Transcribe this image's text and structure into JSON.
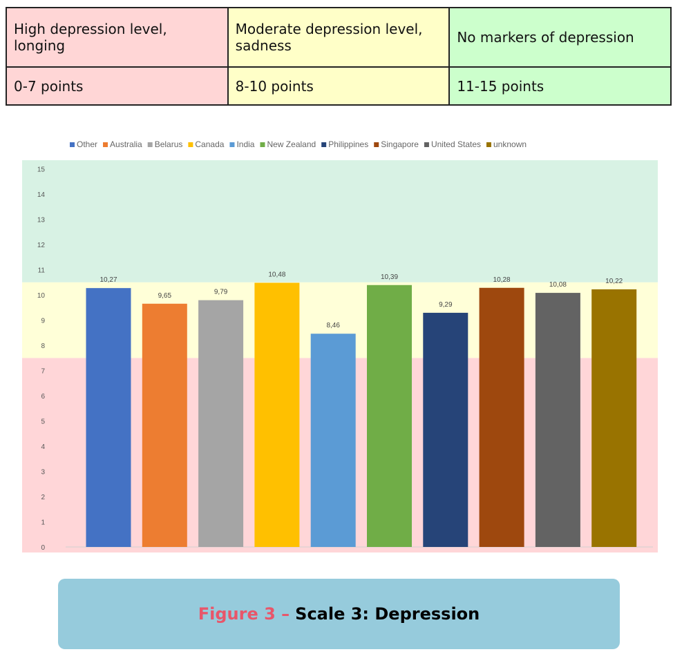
{
  "scale_table": {
    "levels": [
      {
        "label": "High depression level, longing",
        "range": "0-7 points",
        "color": "#ffd6d6"
      },
      {
        "label": "Moderate depression level, sadness",
        "range": "8-10 points",
        "color": "#ffffc8"
      },
      {
        "label": "No markers of depression",
        "range": "11-15 points",
        "color": "#ccffcc"
      }
    ]
  },
  "chart_data": {
    "type": "bar",
    "title": "",
    "xlabel": "",
    "ylabel": "",
    "ylim": [
      0,
      15
    ],
    "yticks": [
      "0",
      "1",
      "2",
      "3",
      "4",
      "5",
      "6",
      "7",
      "8",
      "9",
      "10",
      "11",
      "12",
      "13",
      "14",
      "15"
    ],
    "legend_position": "top",
    "categories": [
      "Other",
      "Australia",
      "Belarus",
      "Canada",
      "India",
      "New Zealand",
      "Philippines",
      "Singapore",
      "United States",
      "unknown"
    ],
    "values": [
      10.27,
      9.65,
      9.79,
      10.48,
      8.46,
      10.39,
      9.29,
      10.28,
      10.08,
      10.22
    ],
    "value_labels": [
      "10,27",
      "9,65",
      "9,79",
      "10,48",
      "8,46",
      "10,39",
      "9,29",
      "10,28",
      "10,08",
      "10,22"
    ],
    "colors": [
      "#4472c4",
      "#ed7d31",
      "#a5a5a5",
      "#ffc000",
      "#5b9bd5",
      "#70ad47",
      "#264478",
      "#9e480e",
      "#636363",
      "#997300"
    ],
    "bands": [
      {
        "from": 0,
        "to": 7.5,
        "color": "#ffd6d8"
      },
      {
        "from": 7.5,
        "to": 10.5,
        "color": "#ffffd8"
      },
      {
        "from": 10.5,
        "to": 15.3,
        "color": "#d8f2e4"
      }
    ]
  },
  "caption": {
    "figure": "Figure 3 –",
    "title": "Scale 3: Depression"
  }
}
